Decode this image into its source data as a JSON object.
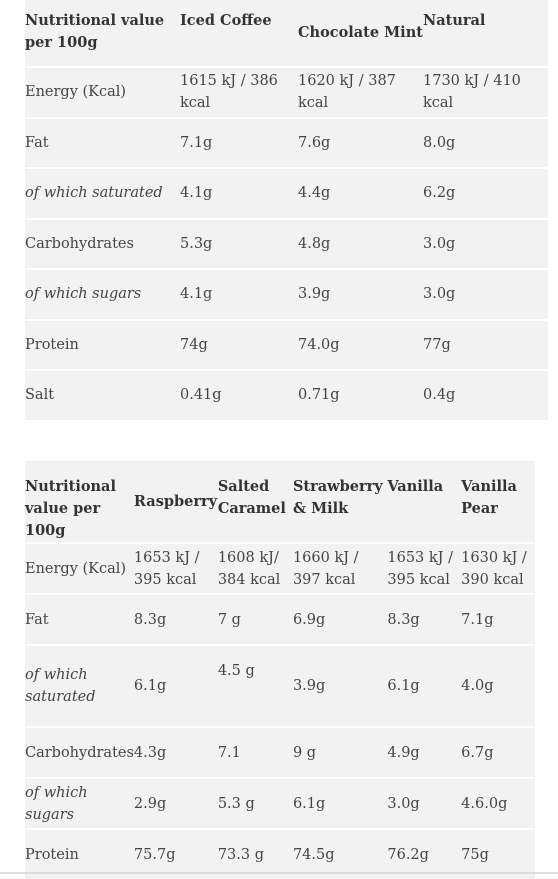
{
  "table1": {
    "headers": [
      "Nutritional value per 100g",
      "Iced Coffee",
      "Chocolate Mint",
      "Natural"
    ],
    "rows": [
      {
        "label": "Energy (Kcal)",
        "italic": false,
        "values": [
          "1615 kJ / 386 kcal",
          "1620 kJ / 387 kcal",
          "1730 kJ / 410 kcal"
        ]
      },
      {
        "label": "Fat",
        "italic": false,
        "values": [
          "7.1g",
          "7.6g",
          "8.0g"
        ]
      },
      {
        "label": "of which saturated",
        "italic": true,
        "values": [
          "4.1g",
          "4.4g",
          "6.2g"
        ]
      },
      {
        "label": "Carbohydrates",
        "italic": false,
        "values": [
          "5.3g",
          "4.8g",
          "3.0g"
        ]
      },
      {
        "label": "of which sugars",
        "italic": true,
        "values": [
          "4.1g",
          "3.9g",
          "3.0g"
        ]
      },
      {
        "label": "Protein",
        "italic": false,
        "values": [
          "74g",
          "74.0g",
          "77g"
        ]
      },
      {
        "label": "Salt",
        "italic": false,
        "values": [
          "0.41g",
          "0.71g",
          "0.4g"
        ]
      }
    ]
  },
  "table2": {
    "headers": [
      "Nutritional value per 100g",
      "Raspberry",
      "Salted Caramel",
      "Strawberry & Milk",
      "Vanilla",
      "Vanilla Pear"
    ],
    "rows": [
      {
        "label": "Energy (Kcal)",
        "italic": false,
        "values": [
          "1653 kJ / 395 kcal",
          "1608 kJ/ 384 kcal",
          "1660 kJ / 397 kcal",
          "1653 kJ / 395 kcal",
          "1630 kJ / 390 kcal"
        ]
      },
      {
        "label": "Fat",
        "italic": false,
        "values": [
          "8.3g",
          "7 g",
          "6.9g",
          "8.3g",
          "7.1g"
        ]
      },
      {
        "label": "of which saturated",
        "italic": true,
        "values": [
          "6.1g",
          "4.5 g",
          "3.9g",
          "6.1g",
          "4.0g"
        ]
      },
      {
        "label": "Carbohydrates",
        "italic": false,
        "values": [
          "4.3g",
          "7.1",
          "9 g",
          "4.9g",
          "6.7g"
        ]
      },
      {
        "label": "of which sugars",
        "italic": true,
        "values": [
          "2.9g",
          "5.3 g",
          "6.1g",
          "3.0g",
          "4.6.0g"
        ]
      },
      {
        "label": "Protein",
        "italic": false,
        "values": [
          "75.7g",
          "73.3 g",
          "74.5g",
          "76.2g",
          "75g"
        ]
      }
    ]
  }
}
